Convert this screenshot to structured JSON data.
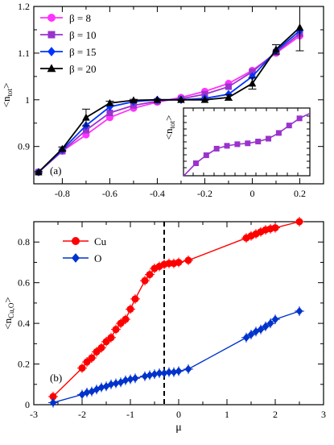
{
  "chart_data": [
    {
      "type": "line",
      "panel_label": "(a)",
      "xlabel": "",
      "ylabel": "<n",
      "ylabel_sub": "tot",
      "ylabel_close": ">",
      "xlim": [
        -0.92,
        0.3
      ],
      "ylim": [
        0.82,
        1.2
      ],
      "xticks": [
        -0.8,
        -0.6,
        -0.4,
        -0.2,
        0,
        0.2
      ],
      "xtick_labels": [
        "-0.8",
        "-0.6",
        "-0.4",
        "-0.2",
        "0",
        "0.2"
      ],
      "yticks": [
        0.9,
        1.0,
        1.1,
        1.2
      ],
      "ytick_labels": [
        "0.9",
        "1",
        "1.1",
        "1.2"
      ],
      "legend": "top-left",
      "series": [
        {
          "name": "β = 8",
          "color": "#ff33ff",
          "marker": "circle",
          "x": [
            -0.9,
            -0.8,
            -0.7,
            -0.6,
            -0.5,
            -0.4,
            -0.3,
            -0.2,
            -0.1,
            0.0,
            0.1,
            0.2
          ],
          "y": [
            0.845,
            0.89,
            0.925,
            0.962,
            0.982,
            0.995,
            1.005,
            1.018,
            1.035,
            1.063,
            1.1,
            1.137
          ]
        },
        {
          "name": "β = 10",
          "color": "#9933cc",
          "marker": "square",
          "x": [
            -0.9,
            -0.8,
            -0.7,
            -0.6,
            -0.5,
            -0.4,
            -0.3,
            -0.2,
            -0.1,
            0.0,
            0.1,
            0.2
          ],
          "y": [
            0.845,
            0.89,
            0.935,
            0.972,
            0.988,
            0.997,
            1.002,
            1.012,
            1.028,
            1.06,
            1.102,
            1.142
          ]
        },
        {
          "name": "β = 15",
          "color": "#0033ff",
          "marker": "diamond",
          "x": [
            -0.9,
            -0.8,
            -0.7,
            -0.6,
            -0.5,
            -0.4,
            -0.3,
            -0.2,
            -0.1,
            0.0,
            0.1,
            0.2
          ],
          "y": [
            0.845,
            0.893,
            0.945,
            0.985,
            0.996,
            1.0,
            1.0,
            1.003,
            1.012,
            1.05,
            1.105,
            1.148
          ]
        },
        {
          "name": "β = 20",
          "color": "#000000",
          "marker": "triangle",
          "x": [
            -0.9,
            -0.8,
            -0.7,
            -0.6,
            -0.5,
            -0.4,
            -0.3,
            -0.2,
            -0.1,
            0.0,
            0.1,
            0.2
          ],
          "y": [
            0.845,
            0.895,
            0.962,
            0.993,
            0.999,
            1.0,
            1.0,
            1.0,
            1.005,
            1.035,
            1.108,
            1.155
          ],
          "yerr": [
            0.002,
            0.004,
            0.018,
            0.004,
            0.002,
            0.001,
            0.001,
            0.001,
            0.006,
            0.012,
            0.01,
            0.05
          ]
        }
      ],
      "inset": {
        "ylabel": "<n",
        "ylabel_sub": "tot",
        "ylabel_close": ">",
        "color": "#9933cc",
        "marker": "square",
        "xlim": [
          -0.92,
          0.3
        ],
        "ylim": [
          0.82,
          1.2
        ],
        "x": [
          -0.8,
          -0.7,
          -0.6,
          -0.5,
          -0.4,
          -0.3,
          -0.2,
          -0.1,
          0.0,
          0.1,
          0.2
        ],
        "y": [
          0.89,
          0.935,
          0.972,
          0.988,
          0.997,
          1.002,
          1.012,
          1.028,
          1.06,
          1.102,
          1.142
        ]
      }
    },
    {
      "type": "line",
      "panel_label": "(b)",
      "xlabel": "μ",
      "ylabel": "<n",
      "ylabel_sub": "Cu,O",
      "ylabel_close": ">",
      "xlim": [
        -3,
        3
      ],
      "ylim": [
        0,
        0.9
      ],
      "xticks": [
        -3,
        -2,
        -1,
        0,
        1,
        2,
        3
      ],
      "xtick_labels": [
        "-3",
        "-2",
        "-1",
        "0",
        "1",
        "2",
        "3"
      ],
      "yticks": [
        0,
        0.2,
        0.4,
        0.6,
        0.8
      ],
      "ytick_labels": [
        "0",
        "0.2",
        "0.4",
        "0.6",
        "0.8"
      ],
      "vline_x": -0.3,
      "legend": "top-left",
      "series": [
        {
          "name": "Cu",
          "color": "#ff0000",
          "marker": "circle",
          "x": [
            -2.6,
            -2.0,
            -1.9,
            -1.8,
            -1.7,
            -1.6,
            -1.5,
            -1.4,
            -1.3,
            -1.2,
            -1.1,
            -1.0,
            -0.9,
            -0.7,
            -0.6,
            -0.5,
            -0.4,
            -0.3,
            -0.2,
            -0.1,
            0.0,
            0.2,
            1.4,
            1.5,
            1.6,
            1.7,
            1.8,
            1.9,
            2.0,
            2.5
          ],
          "y": [
            0.04,
            0.18,
            0.21,
            0.23,
            0.26,
            0.28,
            0.31,
            0.33,
            0.37,
            0.4,
            0.42,
            0.47,
            0.52,
            0.61,
            0.64,
            0.67,
            0.68,
            0.69,
            0.695,
            0.695,
            0.7,
            0.71,
            0.82,
            0.83,
            0.84,
            0.85,
            0.86,
            0.865,
            0.87,
            0.9
          ]
        },
        {
          "name": "O",
          "color": "#0033cc",
          "marker": "diamond",
          "x": [
            -2.6,
            -2.0,
            -1.9,
            -1.8,
            -1.7,
            -1.6,
            -1.5,
            -1.4,
            -1.3,
            -1.2,
            -1.1,
            -1.0,
            -0.9,
            -0.7,
            -0.6,
            -0.5,
            -0.4,
            -0.3,
            -0.2,
            -0.1,
            0.0,
            0.2,
            1.4,
            1.5,
            1.6,
            1.7,
            1.8,
            1.9,
            2.0,
            2.5
          ],
          "y": [
            0.01,
            0.05,
            0.06,
            0.065,
            0.075,
            0.085,
            0.09,
            0.1,
            0.105,
            0.11,
            0.12,
            0.125,
            0.13,
            0.14,
            0.145,
            0.15,
            0.155,
            0.155,
            0.16,
            0.16,
            0.165,
            0.175,
            0.33,
            0.345,
            0.36,
            0.37,
            0.385,
            0.4,
            0.42,
            0.46
          ]
        }
      ]
    }
  ]
}
